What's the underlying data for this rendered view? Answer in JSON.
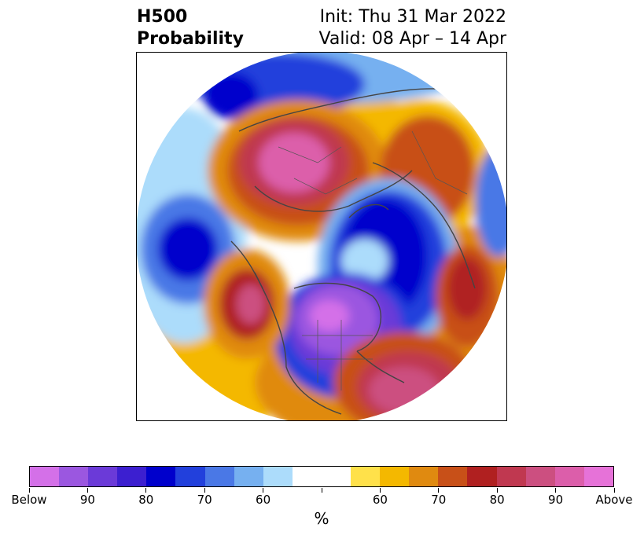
{
  "title": {
    "left_line1": "H500",
    "left_line2": "Probability",
    "right_line1": "Init: Thu 31 Mar 2022",
    "right_line2": "Valid: 08 Apr – 14 Apr"
  },
  "colorbar": {
    "unit": "%",
    "colors": [
      "#d470e8",
      "#9b57e0",
      "#6b3ad8",
      "#3c1fd0",
      "#0000cc",
      "#2240dc",
      "#4a78e6",
      "#76b0f0",
      "#acdcfb",
      "#ffffff",
      "#ffffff",
      "#ffe14a",
      "#f4b800",
      "#e08a10",
      "#c85018",
      "#b02020",
      "#c03850",
      "#cc4f80",
      "#dc5eaa",
      "#e672d8"
    ],
    "labels": [
      "Below",
      "90",
      "80",
      "70",
      "60",
      "",
      "60",
      "70",
      "80",
      "90",
      "Above"
    ]
  },
  "map_features": [
    "north-polar-stereographic-projection",
    "coastlines",
    "country-borders",
    "us-state-borders"
  ]
}
